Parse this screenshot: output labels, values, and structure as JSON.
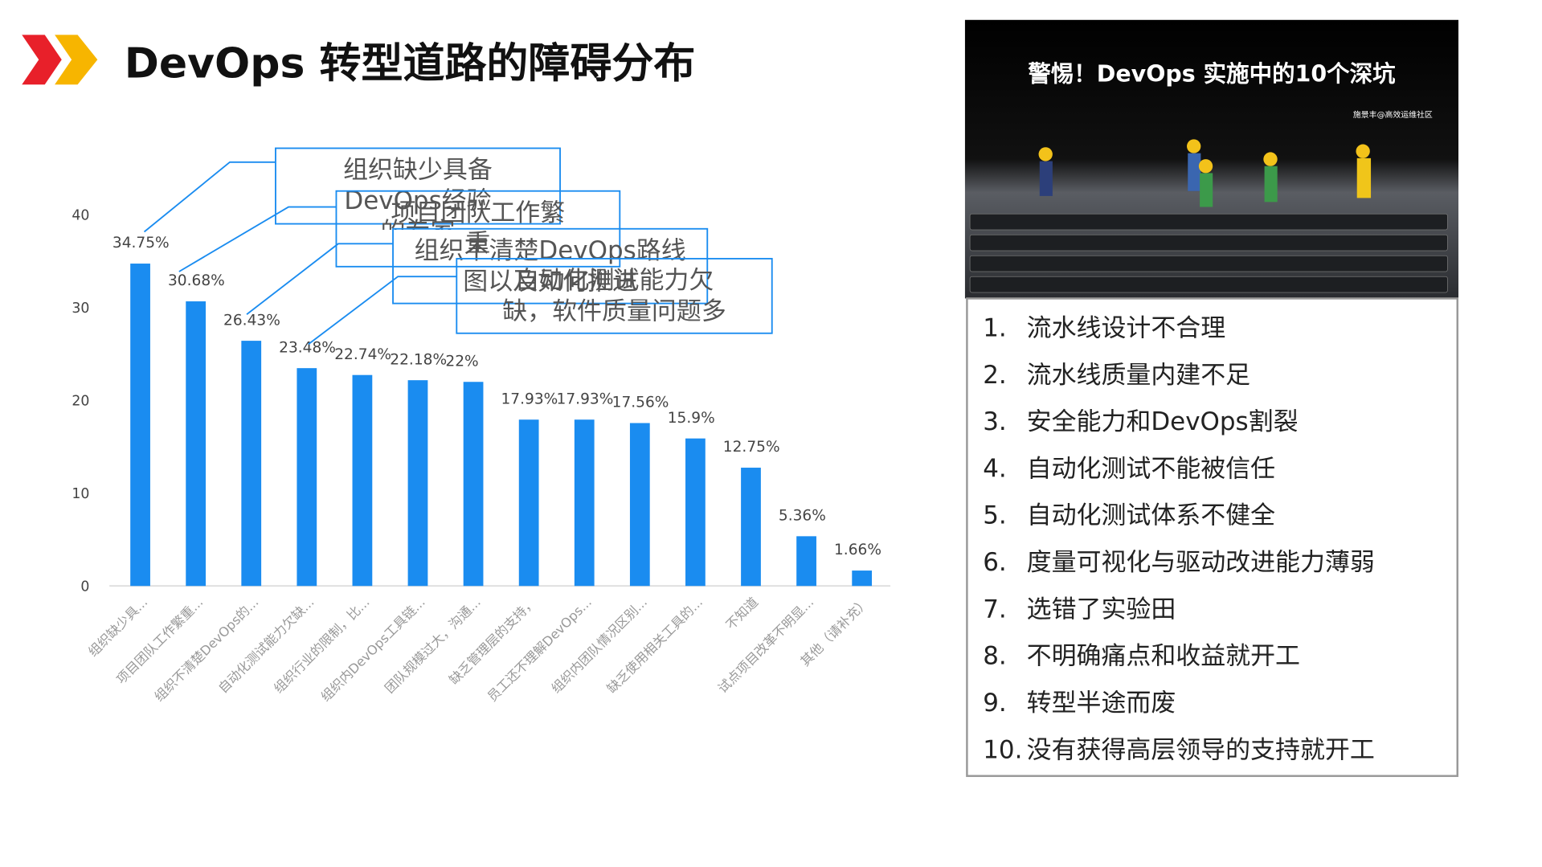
{
  "header": {
    "title": "DevOps 转型道路的障碍分布"
  },
  "chart_data": {
    "type": "bar",
    "categories": [
      "组织缺少具...",
      "项目团队工作繁重...",
      "组织不清楚DevOps的...",
      "自动化测试能力欠缺...",
      "组织行业的限制，比...",
      "组织内DevOps工具链...",
      "团队规模过大，沟通...",
      "缺乏管理层的支持，",
      "员工还不理解DevOps...",
      "组织内团队情况区别...",
      "缺乏使用相关工具的...",
      "不知道",
      "试点项目改革不明显...",
      "其他（请补充）"
    ],
    "values": [
      34.75,
      30.68,
      26.43,
      23.48,
      22.74,
      22.18,
      22,
      17.93,
      17.93,
      17.56,
      15.9,
      12.75,
      5.36,
      1.66
    ],
    "value_labels": [
      "34.75%",
      "30.68%",
      "26.43%",
      "23.48%",
      "22.74%",
      "22.18%",
      "22%",
      "17.93%",
      "17.93%",
      "17.56%",
      "15.9%",
      "12.75%",
      "5.36%",
      "1.66%"
    ],
    "color": "#1a8cf0",
    "ylim": [
      0,
      40
    ],
    "yticks": [
      0,
      10,
      20,
      30,
      40
    ],
    "annotations": [
      "组织缺少具备DevOps经验的专家",
      "项目团队工作繁重",
      "组织不清楚DevOps路线图以及如何推进",
      "自动化测试能力欠缺，软件质量问题多"
    ]
  },
  "panel": {
    "image_title": "警惕！DevOps 实施中的10个深坑",
    "image_credit": "施景丰@高效运维社区",
    "items": [
      {
        "num": "1.",
        "text": "流水线设计不合理"
      },
      {
        "num": "2.",
        "text": "流水线质量内建不足"
      },
      {
        "num": "3.",
        "text": "安全能力和DevOps割裂"
      },
      {
        "num": "4.",
        "text": "自动化测试不能被信任"
      },
      {
        "num": "5.",
        "text": "自动化测试体系不健全"
      },
      {
        "num": "6.",
        "text": "度量可视化与驱动改进能力薄弱"
      },
      {
        "num": "7.",
        "text": "选错了实验田"
      },
      {
        "num": "8.",
        "text": "不明确痛点和收益就开工"
      },
      {
        "num": "9.",
        "text": "转型半途而废"
      },
      {
        "num": "10.",
        "text": "没有获得高层领导的支持就开工"
      }
    ]
  }
}
